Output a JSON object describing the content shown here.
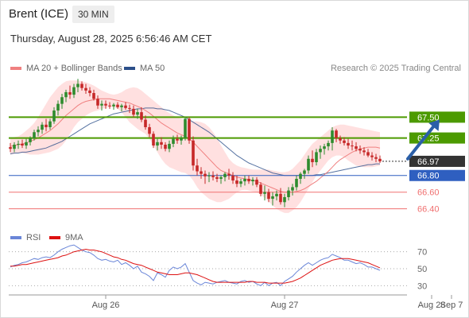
{
  "header": {
    "instrument": "Brent (ICE)",
    "interval": "30 MIN",
    "timestamp": "Thursday, August 28, 2025 6:56:46 AM CET"
  },
  "attribution": "Research © 2025 Trading Central",
  "colors": {
    "up_candle": "#2e8b2e",
    "down_candle": "#c62828",
    "ma20": "#f08080",
    "band_fill": "#ffd5d5",
    "ma50": "#2b4f8a",
    "resistance": "#4c9a00",
    "support": "#f07070",
    "pivot": "#2f5fc0",
    "current": "#333333",
    "rsi": "#6a86d8",
    "rsi_ma": "#dd1111",
    "arrow": "#2b5fa8"
  },
  "chart_data": [
    {
      "type": "line",
      "title": "",
      "legend": [
        {
          "label": "MA 20 + Bollinger Bands",
          "color": "#f08080"
        },
        {
          "label": "MA 50",
          "color": "#2b4f8a"
        }
      ],
      "legend_placement": "top-left",
      "x_ticks": [
        "Aug 26",
        "Aug 27",
        "Aug 28",
        "Sep 7"
      ],
      "x_tick_index": [
        24,
        69,
        106,
        111
      ],
      "ylim": [
        66.12,
        68.0
      ],
      "y_price_axis": "right",
      "candles": [
        [
          67.14,
          67.19,
          67.08,
          67.12
        ],
        [
          67.12,
          67.2,
          67.08,
          67.17
        ],
        [
          67.17,
          67.22,
          67.12,
          67.18
        ],
        [
          67.18,
          67.23,
          67.13,
          67.16
        ],
        [
          67.16,
          67.24,
          67.12,
          67.2
        ],
        [
          67.2,
          67.27,
          67.16,
          67.25
        ],
        [
          67.25,
          67.35,
          67.22,
          67.32
        ],
        [
          67.32,
          67.39,
          67.27,
          67.35
        ],
        [
          67.35,
          67.44,
          67.3,
          67.41
        ],
        [
          67.41,
          67.48,
          67.33,
          67.38
        ],
        [
          67.38,
          67.48,
          67.35,
          67.45
        ],
        [
          67.45,
          67.62,
          67.42,
          67.58
        ],
        [
          67.58,
          67.7,
          67.52,
          67.66
        ],
        [
          67.66,
          67.78,
          67.6,
          67.74
        ],
        [
          67.74,
          67.83,
          67.68,
          67.8
        ],
        [
          67.8,
          67.88,
          67.72,
          67.77
        ],
        [
          67.77,
          67.9,
          67.73,
          67.86
        ],
        [
          67.86,
          67.96,
          67.8,
          67.9
        ],
        [
          67.9,
          67.93,
          67.82,
          67.85
        ],
        [
          67.85,
          67.9,
          67.78,
          67.82
        ],
        [
          67.82,
          67.86,
          67.75,
          67.79
        ],
        [
          67.79,
          67.83,
          67.7,
          67.72
        ],
        [
          67.72,
          67.76,
          67.6,
          67.64
        ],
        [
          67.64,
          67.7,
          67.58,
          67.66
        ],
        [
          67.66,
          67.7,
          67.6,
          67.64
        ],
        [
          67.64,
          67.68,
          67.6,
          67.63
        ],
        [
          67.63,
          67.67,
          67.59,
          67.65
        ],
        [
          67.65,
          67.68,
          67.6,
          67.62
        ],
        [
          67.62,
          67.66,
          67.57,
          67.64
        ],
        [
          67.64,
          67.68,
          67.59,
          67.61
        ],
        [
          67.61,
          67.65,
          67.55,
          67.6
        ],
        [
          67.6,
          67.64,
          67.5,
          67.53
        ],
        [
          67.53,
          67.6,
          67.48,
          67.56
        ],
        [
          67.56,
          67.62,
          67.44,
          67.47
        ],
        [
          67.47,
          67.52,
          67.35,
          67.38
        ],
        [
          67.38,
          67.42,
          67.26,
          67.3
        ],
        [
          67.3,
          67.33,
          67.13,
          67.16
        ],
        [
          67.16,
          67.24,
          67.1,
          67.2
        ],
        [
          67.2,
          67.26,
          67.12,
          67.17
        ],
        [
          67.17,
          67.2,
          67.09,
          67.12
        ],
        [
          67.12,
          67.22,
          67.08,
          67.18
        ],
        [
          67.18,
          67.28,
          67.14,
          67.24
        ],
        [
          67.24,
          67.29,
          67.18,
          67.22
        ],
        [
          67.22,
          67.28,
          67.17,
          67.25
        ],
        [
          67.25,
          67.5,
          67.22,
          67.48
        ],
        [
          67.48,
          67.5,
          67.18,
          67.22
        ],
        [
          67.22,
          67.27,
          66.86,
          66.92
        ],
        [
          66.92,
          67.0,
          66.8,
          66.85
        ],
        [
          66.85,
          66.9,
          66.76,
          66.82
        ],
        [
          66.82,
          66.86,
          66.7,
          66.79
        ],
        [
          66.79,
          66.84,
          66.72,
          66.8
        ],
        [
          66.8,
          66.85,
          66.74,
          66.78
        ],
        [
          66.78,
          66.82,
          66.72,
          66.76
        ],
        [
          66.76,
          66.8,
          66.7,
          66.78
        ],
        [
          66.78,
          66.84,
          66.73,
          66.82
        ],
        [
          66.82,
          66.88,
          66.75,
          66.8
        ],
        [
          66.8,
          66.84,
          66.7,
          66.74
        ],
        [
          66.74,
          66.8,
          66.66,
          66.7
        ],
        [
          66.7,
          66.76,
          66.66,
          66.73
        ],
        [
          66.73,
          66.8,
          66.68,
          66.76
        ],
        [
          66.76,
          66.8,
          66.7,
          66.73
        ],
        [
          66.73,
          66.78,
          66.68,
          66.75
        ],
        [
          66.75,
          66.78,
          66.66,
          66.69
        ],
        [
          66.69,
          66.72,
          66.55,
          66.58
        ],
        [
          66.58,
          66.68,
          66.5,
          66.6
        ],
        [
          66.6,
          66.64,
          66.48,
          66.52
        ],
        [
          66.52,
          66.6,
          66.44,
          66.55
        ],
        [
          66.55,
          66.62,
          66.5,
          66.58
        ],
        [
          66.58,
          66.65,
          66.45,
          66.48
        ],
        [
          66.48,
          66.58,
          66.42,
          66.54
        ],
        [
          66.54,
          66.66,
          66.5,
          66.62
        ],
        [
          66.62,
          66.7,
          66.56,
          66.66
        ],
        [
          66.66,
          66.8,
          66.62,
          66.76
        ],
        [
          66.76,
          66.84,
          66.7,
          66.82
        ],
        [
          66.82,
          66.88,
          66.76,
          66.86
        ],
        [
          66.86,
          67.04,
          66.82,
          67.0
        ],
        [
          67.0,
          67.1,
          66.9,
          66.96
        ],
        [
          66.96,
          67.12,
          66.92,
          67.08
        ],
        [
          67.08,
          67.16,
          67.0,
          67.12
        ],
        [
          67.12,
          67.18,
          67.05,
          67.15
        ],
        [
          67.15,
          67.22,
          67.1,
          67.19
        ],
        [
          67.19,
          67.38,
          67.1,
          67.34
        ],
        [
          67.34,
          67.36,
          67.2,
          67.25
        ],
        [
          67.25,
          67.28,
          67.18,
          67.22
        ],
        [
          67.22,
          67.26,
          67.16,
          67.19
        ],
        [
          67.19,
          67.24,
          67.12,
          67.16
        ],
        [
          67.16,
          67.22,
          67.1,
          67.15
        ],
        [
          67.15,
          67.2,
          67.09,
          67.12
        ],
        [
          67.12,
          67.16,
          67.06,
          67.1
        ],
        [
          67.1,
          67.14,
          67.04,
          67.08
        ],
        [
          67.08,
          67.12,
          67.02,
          67.04
        ],
        [
          67.04,
          67.08,
          66.98,
          67.02
        ],
        [
          67.02,
          67.06,
          66.96,
          67.0
        ],
        [
          67.0,
          67.04,
          66.95,
          66.97
        ]
      ],
      "ma20": [
        67.15,
        67.16,
        67.17,
        67.18,
        67.19,
        67.21,
        67.23,
        67.25,
        67.28,
        67.31,
        67.34,
        67.38,
        67.42,
        67.47,
        67.52,
        67.56,
        67.6,
        67.64,
        67.67,
        67.69,
        67.7,
        67.71,
        67.72,
        67.72,
        67.72,
        67.72,
        67.71,
        67.7,
        67.69,
        67.68,
        67.67,
        67.65,
        67.63,
        67.61,
        67.58,
        67.55,
        67.51,
        67.47,
        67.43,
        67.4,
        67.37,
        67.34,
        67.31,
        67.29,
        67.27,
        67.24,
        67.2,
        67.15,
        67.1,
        67.05,
        67.0,
        66.95,
        66.9,
        66.86,
        66.84,
        66.82,
        66.8,
        66.78,
        66.77,
        66.76,
        66.75,
        66.74,
        66.73,
        66.71,
        66.69,
        66.67,
        66.65,
        66.63,
        66.61,
        66.6,
        66.6,
        66.6,
        66.61,
        66.62,
        66.64,
        66.67,
        66.7,
        66.73,
        66.77,
        66.81,
        66.85,
        66.9,
        66.95,
        66.99,
        67.02,
        67.05,
        67.08,
        67.1,
        67.12,
        67.13,
        67.14,
        67.14,
        67.14,
        67.13
      ],
      "bb_upper": [
        67.25,
        67.26,
        67.27,
        67.3,
        67.34,
        67.38,
        67.43,
        67.5,
        67.58,
        67.66,
        67.74,
        67.8,
        67.86,
        67.9,
        67.93,
        67.94,
        67.94,
        67.94,
        67.93,
        67.92,
        67.9,
        67.88,
        67.85,
        67.82,
        67.8,
        67.78,
        67.77,
        67.78,
        67.8,
        67.83,
        67.85,
        67.86,
        67.85,
        67.82,
        67.78,
        67.74,
        67.7,
        67.66,
        67.62,
        67.58,
        67.55,
        67.52,
        67.5,
        67.48,
        67.46,
        67.45,
        67.45,
        67.45,
        67.44,
        67.42,
        67.38,
        67.32,
        67.25,
        67.16,
        67.08,
        67.0,
        66.95,
        66.92,
        66.9,
        66.89,
        66.88,
        66.87,
        66.87,
        66.87,
        66.87,
        66.87,
        66.86,
        66.85,
        66.84,
        66.84,
        66.85,
        66.88,
        66.93,
        66.98,
        67.05,
        67.12,
        67.18,
        67.22,
        67.26,
        67.3,
        67.34,
        67.38,
        67.4,
        67.41,
        67.41,
        67.4,
        67.39,
        67.38,
        67.37,
        67.36,
        67.35,
        67.34,
        67.33,
        67.32
      ],
      "bb_lower": [
        67.05,
        67.06,
        67.07,
        67.07,
        67.06,
        67.05,
        67.05,
        67.05,
        67.06,
        67.07,
        67.08,
        67.1,
        67.12,
        67.16,
        67.22,
        67.3,
        67.38,
        67.44,
        67.48,
        67.52,
        67.55,
        67.57,
        67.58,
        67.6,
        67.61,
        67.62,
        67.62,
        67.6,
        67.56,
        67.5,
        67.44,
        67.4,
        67.36,
        67.33,
        67.3,
        67.24,
        67.16,
        67.08,
        67.0,
        66.94,
        66.9,
        66.88,
        66.86,
        66.84,
        66.83,
        66.8,
        66.74,
        66.66,
        66.6,
        66.56,
        66.52,
        66.5,
        66.48,
        66.48,
        66.5,
        66.52,
        66.56,
        66.6,
        66.62,
        66.63,
        66.62,
        66.61,
        66.6,
        66.57,
        66.53,
        66.49,
        66.44,
        66.4,
        66.37,
        66.35,
        66.35,
        66.38,
        66.42,
        66.48,
        66.56,
        66.64,
        66.72,
        66.8,
        66.86,
        66.92,
        66.98,
        67.02,
        67.04,
        67.04,
        67.02,
        66.98,
        66.95,
        66.92,
        66.91,
        66.9,
        66.9,
        66.9,
        66.91,
        66.92
      ],
      "ma50": [
        67.06,
        67.07,
        67.07,
        67.08,
        67.08,
        67.09,
        67.1,
        67.11,
        67.12,
        67.13,
        67.15,
        67.17,
        67.19,
        67.21,
        67.24,
        67.27,
        67.3,
        67.33,
        67.36,
        67.39,
        67.42,
        67.44,
        67.46,
        67.48,
        67.5,
        67.52,
        67.54,
        67.55,
        67.56,
        67.57,
        67.58,
        67.59,
        67.6,
        67.6,
        67.61,
        67.61,
        67.61,
        67.6,
        67.6,
        67.59,
        67.58,
        67.56,
        67.54,
        67.52,
        67.5,
        67.47,
        67.44,
        67.41,
        67.38,
        67.35,
        67.32,
        67.28,
        67.24,
        67.2,
        67.16,
        67.12,
        67.08,
        67.04,
        67.01,
        66.98,
        66.95,
        66.93,
        66.91,
        66.89,
        66.87,
        66.85,
        66.83,
        66.82,
        66.81,
        66.8,
        66.8,
        66.8,
        66.8,
        66.8,
        66.8,
        66.8,
        66.8,
        66.81,
        66.81,
        66.82,
        66.83,
        66.84,
        66.85,
        66.86,
        66.87,
        66.88,
        66.89,
        66.9,
        66.91,
        66.92,
        66.93,
        66.93,
        66.94,
        66.94
      ],
      "levels": [
        {
          "value": 67.5,
          "label": "67.50",
          "kind": "resistance"
        },
        {
          "value": 67.25,
          "label": "67.25",
          "kind": "resistance"
        },
        {
          "value": 66.97,
          "label": "66.97",
          "kind": "current"
        },
        {
          "value": 66.8,
          "label": "66.80",
          "kind": "pivot"
        },
        {
          "value": 66.6,
          "label": "66.60",
          "kind": "support"
        },
        {
          "value": 66.4,
          "label": "66.40",
          "kind": "support"
        }
      ],
      "forecast_arrow": {
        "from_index": 100,
        "from_value": 67.0,
        "to_index": 108,
        "to_value": 67.47
      }
    },
    {
      "type": "line",
      "title": "",
      "legend": [
        {
          "label": "RSI",
          "color": "#6a86d8"
        },
        {
          "label": "9MA",
          "color": "#dd1111"
        }
      ],
      "legend_placement": "top-left",
      "ylim": [
        20,
        80
      ],
      "y_ticks": [
        70,
        50,
        30
      ],
      "y_tick_labels": [
        "70",
        "50",
        "30"
      ],
      "rsi": [
        52,
        54,
        55,
        57,
        58,
        60,
        62,
        61,
        63,
        64,
        63,
        66,
        70,
        73,
        75,
        77,
        78,
        75,
        72,
        70,
        69,
        66,
        62,
        60,
        61,
        59,
        58,
        60,
        55,
        57,
        54,
        50,
        53,
        46,
        44,
        41,
        36,
        45,
        43,
        40,
        48,
        52,
        50,
        52,
        56,
        46,
        36,
        33,
        31,
        34,
        33,
        32,
        34,
        35,
        36,
        34,
        33,
        32,
        35,
        36,
        34,
        35,
        32,
        30,
        34,
        30,
        33,
        34,
        30,
        35,
        38,
        41,
        46,
        50,
        54,
        57,
        54,
        57,
        60,
        62,
        63,
        67,
        65,
        63,
        60,
        60,
        58,
        56,
        57,
        55,
        52,
        52,
        50,
        48
      ],
      "rsi_ma": [
        53,
        53,
        54,
        55,
        55,
        56,
        57,
        58,
        59,
        60,
        61,
        62,
        63,
        65,
        66,
        68,
        70,
        71,
        72,
        73,
        72,
        72,
        71,
        70,
        68,
        66,
        64,
        63,
        61,
        60,
        58,
        56,
        55,
        54,
        52,
        50,
        48,
        46,
        45,
        44,
        43,
        43,
        43,
        44,
        45,
        45,
        44,
        43,
        41,
        39,
        37,
        35,
        34,
        34,
        34,
        34,
        34,
        34,
        34,
        34,
        35,
        35,
        34,
        34,
        34,
        33,
        33,
        33,
        33,
        33,
        34,
        35,
        37,
        39,
        42,
        45,
        48,
        51,
        54,
        56,
        58,
        60,
        61,
        62,
        62,
        62,
        61,
        60,
        59,
        58,
        57,
        55,
        53,
        51
      ]
    }
  ]
}
